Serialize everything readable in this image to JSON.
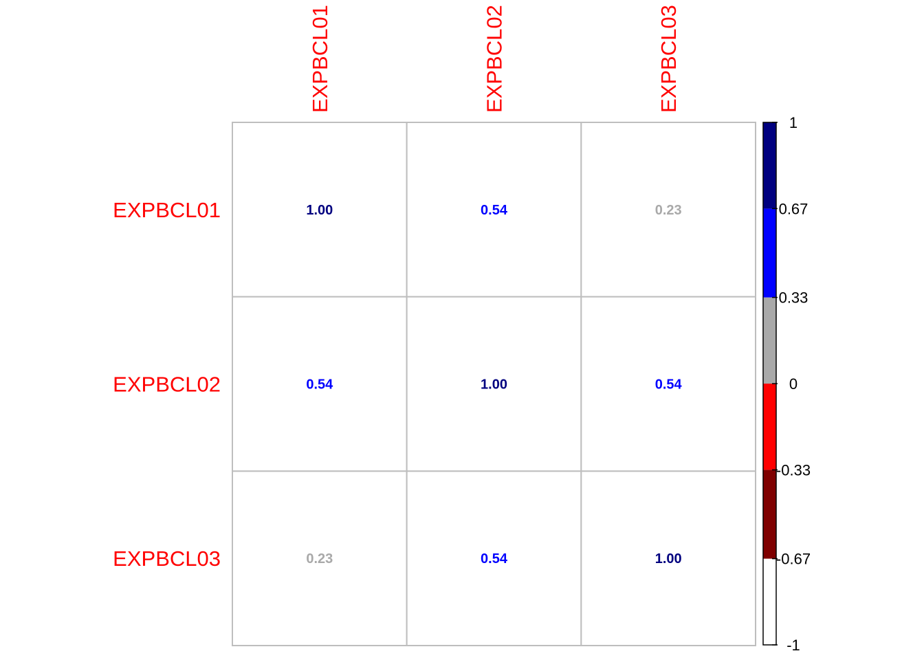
{
  "chart_data": {
    "type": "heatmap",
    "rows": [
      "EXPBCL01",
      "EXPBCL02",
      "EXPBCL03"
    ],
    "columns": [
      "EXPBCL01",
      "EXPBCL02",
      "EXPBCL03"
    ],
    "values": [
      [
        1.0,
        0.54,
        0.23
      ],
      [
        0.54,
        1.0,
        0.54
      ],
      [
        0.23,
        0.54,
        1.0
      ]
    ],
    "value_labels": [
      [
        "1.00",
        "0.54",
        "0.23"
      ],
      [
        "0.54",
        "1.00",
        "0.54"
      ],
      [
        "0.23",
        "0.54",
        "1.00"
      ]
    ],
    "label_color": "#ff0000",
    "cell_fill": "#ffffff",
    "grid_color": "#bebebe",
    "color_scale": {
      "range": [
        -1,
        1
      ],
      "bins": [
        {
          "from": -1,
          "to": -0.67,
          "color": "#ffffff"
        },
        {
          "from": -0.67,
          "to": -0.33,
          "color": "#7f0000"
        },
        {
          "from": -0.33,
          "to": 0,
          "color": "#ff0000"
        },
        {
          "from": 0,
          "to": 0.33,
          "color": "#a9a9a9"
        },
        {
          "from": 0.33,
          "to": 0.67,
          "color": "#0000ff"
        },
        {
          "from": 0.67,
          "to": 1,
          "color": "#00007f"
        }
      ],
      "tick_values": [
        1,
        0.67,
        0.33,
        0,
        -0.33,
        -0.67,
        -1
      ],
      "tick_labels": [
        "1",
        "0.67",
        "0.33",
        "0",
        "-0.33",
        "-0.67",
        "-1"
      ]
    }
  }
}
